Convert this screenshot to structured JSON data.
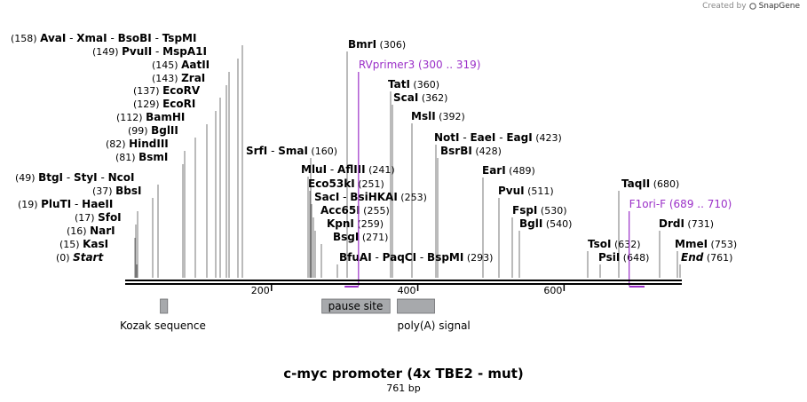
{
  "credit": {
    "prefix": "Created by",
    "brand": "SnapGene"
  },
  "title": "c-myc promoter (4x TBE2 - mut)",
  "length_label": "761 bp",
  "sequence_length": 761,
  "colors": {
    "primer": "#9b30c8",
    "feature": "#a7a9ac",
    "backbone": "#000000",
    "label_line": "#777777"
  },
  "ticks": [
    "200",
    "400",
    "600"
  ],
  "enzyme_labels": [
    {
      "pos": "(158)",
      "names": [
        "AvaI",
        "XmaI",
        "BsoBI",
        "TspMI"
      ]
    },
    {
      "pos": "(149)",
      "names": [
        "PvuII",
        "MspA1I"
      ]
    },
    {
      "pos": "(145)",
      "names": [
        "AatII"
      ]
    },
    {
      "pos": "(143)",
      "names": [
        "ZraI"
      ]
    },
    {
      "pos": "(137)",
      "names": [
        "EcoRV"
      ]
    },
    {
      "pos": "(129)",
      "names": [
        "EcoRI"
      ]
    },
    {
      "pos": "(112)",
      "names": [
        "BamHI"
      ]
    },
    {
      "pos": "(99)",
      "names": [
        "BglII"
      ]
    },
    {
      "pos": "(82)",
      "names": [
        "HindIII"
      ]
    },
    {
      "pos": "(81)",
      "names": [
        "BsmI"
      ]
    },
    {
      "pos": "(49)",
      "names": [
        "BtgI",
        "StyI",
        "NcoI"
      ]
    },
    {
      "pos": "(37)",
      "names": [
        "BbsI"
      ]
    },
    {
      "pos": "(19)",
      "names": [
        "PluTI",
        "HaeII"
      ]
    },
    {
      "pos": "(17)",
      "names": [
        "SfoI"
      ]
    },
    {
      "pos": "(16)",
      "names": [
        "NarI"
      ]
    },
    {
      "pos": "(15)",
      "names": [
        "KasI"
      ]
    },
    {
      "pos": "(0)",
      "names": [
        "Start"
      ]
    },
    {
      "pos": "(306)",
      "names": [
        "BmrI"
      ]
    },
    {
      "pos": "(360)",
      "names": [
        "TatI"
      ]
    },
    {
      "pos": "(362)",
      "names": [
        "ScaI"
      ]
    },
    {
      "pos": "(392)",
      "names": [
        "MslI"
      ]
    },
    {
      "pos": "(423)",
      "names": [
        "NotI",
        "EaeI",
        "EagI"
      ]
    },
    {
      "pos": "(428)",
      "names": [
        "BsrBI"
      ]
    },
    {
      "pos": "(160)",
      "names": [
        "SrfI",
        "SmaI"
      ]
    },
    {
      "pos": "(241)",
      "names": [
        "MluI",
        "AflIII"
      ]
    },
    {
      "pos": "(251)",
      "names": [
        "Eco53kI"
      ]
    },
    {
      "pos": "(253)",
      "names": [
        "SacI",
        "BsiHKAI"
      ]
    },
    {
      "pos": "(255)",
      "names": [
        "Acc65I"
      ]
    },
    {
      "pos": "(259)",
      "names": [
        "KpnI"
      ]
    },
    {
      "pos": "(271)",
      "names": [
        "BsgI"
      ]
    },
    {
      "pos": "(293)",
      "names": [
        "BfuAI",
        "PaqCI",
        "BspMI"
      ]
    },
    {
      "pos": "(489)",
      "names": [
        "EarI"
      ]
    },
    {
      "pos": "(511)",
      "names": [
        "PvuI"
      ]
    },
    {
      "pos": "(530)",
      "names": [
        "FspI"
      ]
    },
    {
      "pos": "(540)",
      "names": [
        "BglI"
      ]
    },
    {
      "pos": "(680)",
      "names": [
        "TaqII"
      ]
    },
    {
      "pos": "(731)",
      "names": [
        "DrdI"
      ]
    },
    {
      "pos": "(632)",
      "names": [
        "TsoI"
      ]
    },
    {
      "pos": "(753)",
      "names": [
        "MmeI"
      ]
    },
    {
      "pos": "(648)",
      "names": [
        "PsiI"
      ]
    },
    {
      "pos": "(761)",
      "names": [
        "End"
      ]
    }
  ],
  "primers": [
    {
      "name": "RVprimer3",
      "range": "(300 .. 319)",
      "start": 300,
      "end": 319
    },
    {
      "name": "F1ori-F",
      "range": "(689 .. 710)",
      "start": 689,
      "end": 710
    }
  ],
  "features": [
    {
      "name": "Kozak sequence",
      "start": 48,
      "end": 58,
      "boxed": false
    },
    {
      "name": "pause site",
      "start": 269,
      "end": 362,
      "boxed": true
    },
    {
      "name": "poly(A) signal",
      "start": 372,
      "end": 423,
      "boxed": false
    }
  ]
}
